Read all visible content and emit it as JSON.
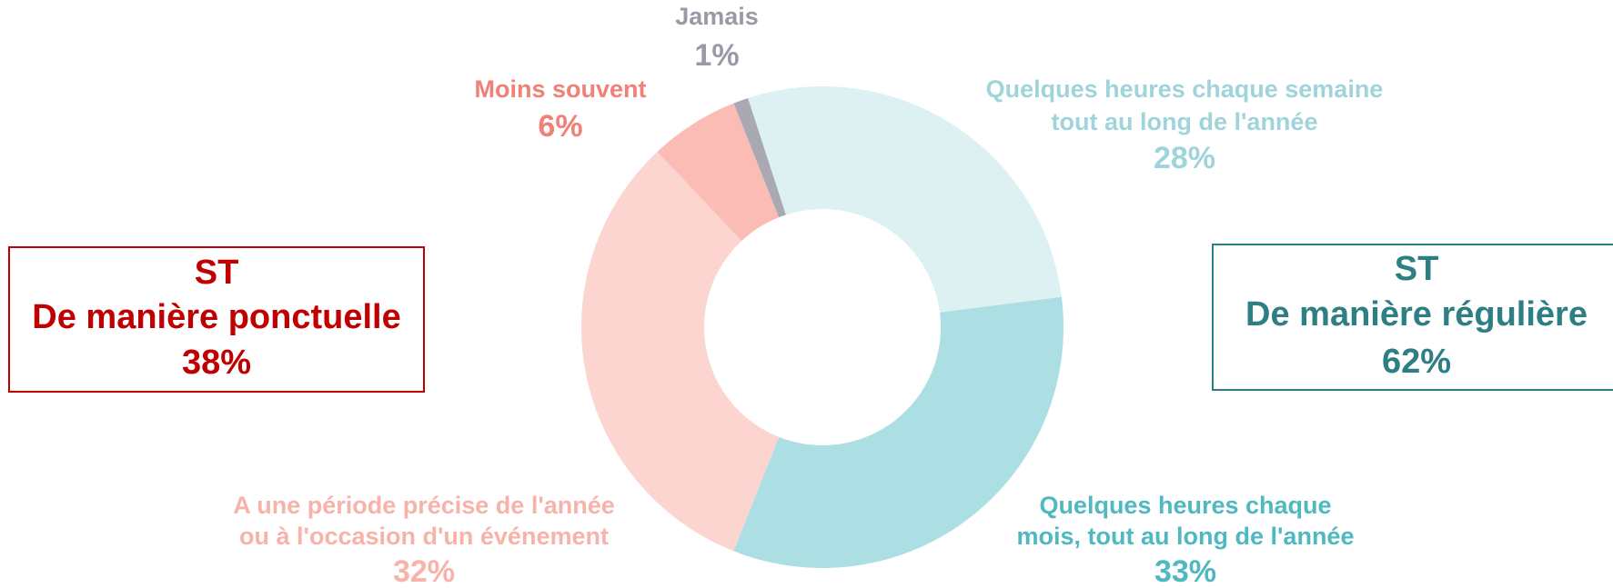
{
  "chart_data": {
    "type": "donut",
    "labels": [
      [
        "Quelques heures chaque semaine",
        "tout au long de l'année"
      ],
      [
        "Quelques heures chaque",
        "mois, tout au long de l'année"
      ],
      [
        "A une période précise de l'année",
        "ou à l'occasion d'un événement"
      ],
      [
        "Moins souvent"
      ],
      [
        "Jamais"
      ]
    ],
    "values": [
      28,
      33,
      32,
      6,
      1
    ],
    "value_labels": [
      "28%",
      "33%",
      "32%",
      "6%",
      "1%"
    ],
    "colors": [
      "#ddf0f2",
      "#acdfe3",
      "#fcd5d0",
      "#fbbcb6",
      "#a9a9b4"
    ],
    "label_colors": [
      "#9fd4da",
      "#4fb8c0",
      "#f7b3aa",
      "#f08078",
      "#9a9aa6"
    ],
    "annotations": [
      {
        "lines": [
          "ST",
          "De manière ponctuelle",
          "38%"
        ],
        "color": "#c00000"
      },
      {
        "lines": [
          "ST",
          "De manière régulière",
          "62%"
        ],
        "color": "#2e7f84"
      }
    ]
  }
}
